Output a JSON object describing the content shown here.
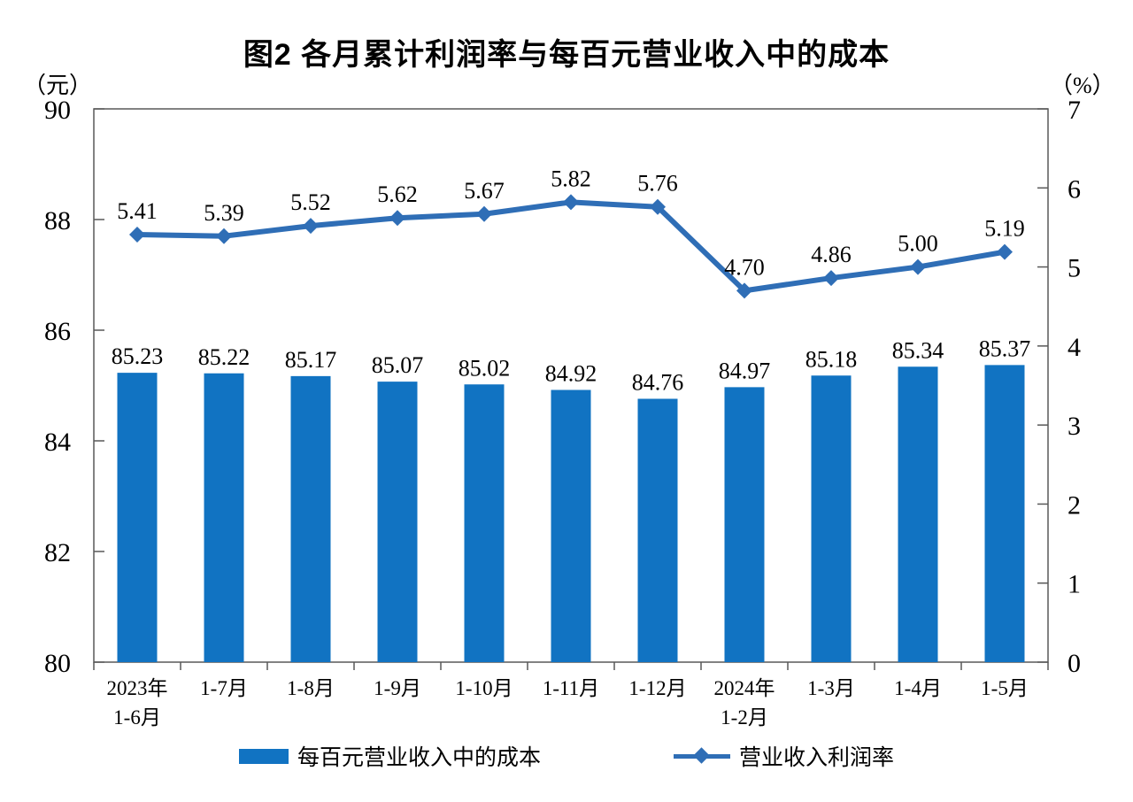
{
  "title": "图2  各月累计利润率与每百元营业收入中的成本",
  "axes": {
    "left_unit": "（元）",
    "right_unit": "（%）"
  },
  "legend": {
    "bar_label": "每百元营业收入中的成本",
    "line_label": "营业收入利润率"
  },
  "colors": {
    "bar": "#1173C2",
    "line": "#2F6EB6",
    "axis": "#595959",
    "text": "#000000"
  },
  "chart_data": {
    "type": "combo",
    "categories": [
      "2023年\n1-6月",
      "1-7月",
      "1-8月",
      "1-9月",
      "1-10月",
      "1-11月",
      "1-12月",
      "2024年\n1-2月",
      "1-3月",
      "1-4月",
      "1-5月"
    ],
    "series": [
      {
        "name": "每百元营业收入中的成本",
        "type": "bar",
        "axis": "left",
        "values": [
          85.23,
          85.22,
          85.17,
          85.07,
          85.02,
          84.92,
          84.76,
          84.97,
          85.18,
          85.34,
          85.37
        ]
      },
      {
        "name": "营业收入利润率",
        "type": "line",
        "axis": "right",
        "values": [
          5.41,
          5.39,
          5.52,
          5.62,
          5.67,
          5.82,
          5.76,
          4.7,
          4.86,
          5.0,
          5.19
        ]
      }
    ],
    "left_axis": {
      "unit": "（元）",
      "min": 80,
      "max": 90,
      "tick_step": 2,
      "ticks": [
        80,
        82,
        84,
        86,
        88,
        90
      ]
    },
    "right_axis": {
      "unit": "（%）",
      "min": 0,
      "max": 7,
      "tick_step": 1,
      "ticks": [
        0,
        1,
        2,
        3,
        4,
        5,
        6,
        7
      ]
    },
    "grid": false,
    "data_labels": true,
    "legend_position": "bottom"
  }
}
